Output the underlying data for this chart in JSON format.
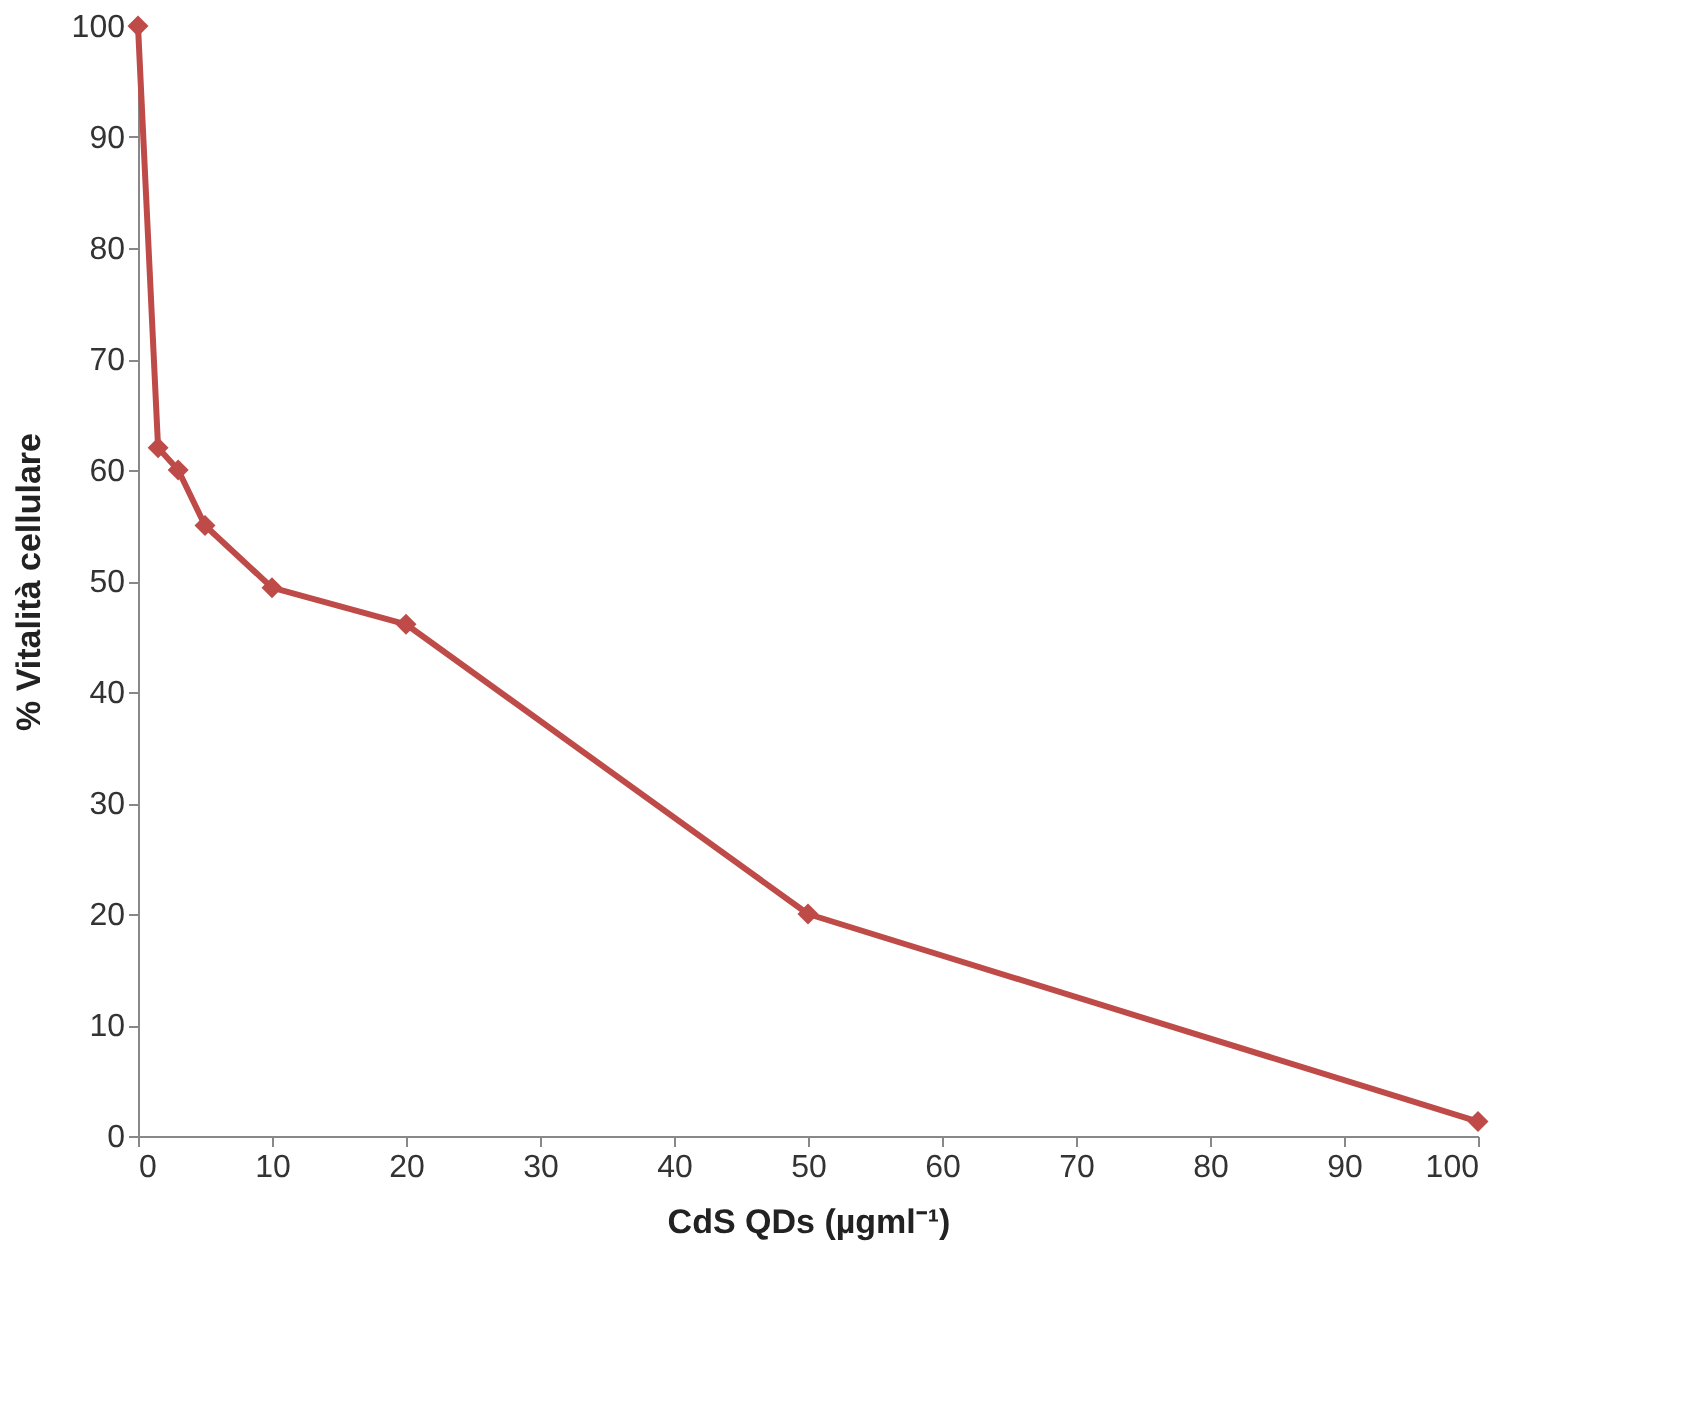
{
  "chart_data": {
    "type": "line",
    "xlabel": "CdS QDs (µgml⁻¹)",
    "ylabel": "% Vitalità cellulare",
    "x": [
      0,
      1.5,
      3,
      5,
      10,
      20,
      50,
      100
    ],
    "series": [
      {
        "color": "#be4b48",
        "values": [
          100,
          62,
          60,
          55,
          49.4,
          46.1,
          20,
          1.3
        ]
      }
    ],
    "xlim": [
      0,
      100
    ],
    "xticks": [
      0,
      10,
      20,
      30,
      40,
      50,
      60,
      70,
      80,
      90,
      100
    ],
    "ylim": [
      0,
      100
    ],
    "yticks": [
      0,
      10,
      20,
      30,
      40,
      50,
      60,
      70,
      80,
      90,
      100
    ],
    "grid": false,
    "marker": "diamond",
    "line_style": "solid"
  }
}
